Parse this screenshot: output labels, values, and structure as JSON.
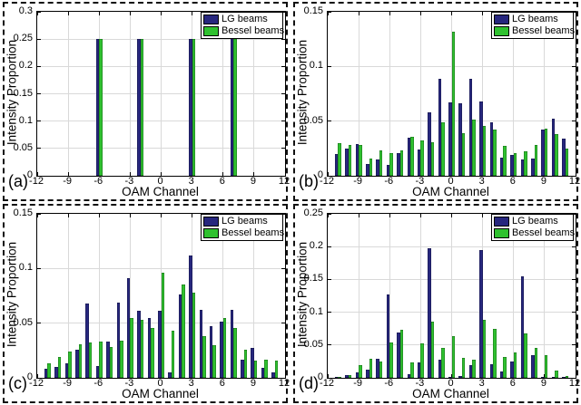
{
  "colors": {
    "lg": "#27277E",
    "bessel": "#2FC12F",
    "grid": "#D9D9D9",
    "axis": "#000000",
    "panel_border": "#111111",
    "legend_bg": "#FFFFFF"
  },
  "legend": {
    "items": [
      {
        "label": "LG beams",
        "color_key": "lg"
      },
      {
        "label": "Bessel beams",
        "color_key": "bessel"
      }
    ]
  },
  "chart_data": [
    {
      "panel": "(a)",
      "type": "bar",
      "xlabel": "OAM Channel",
      "ylabel": "Intensity Proportion",
      "xlim": [
        -12,
        12
      ],
      "ylim": [
        0,
        0.3
      ],
      "xticks": [
        -12,
        -9,
        -6,
        -3,
        0,
        3,
        6,
        9,
        12
      ],
      "yticks": [
        0,
        0.05,
        0.1,
        0.15,
        0.2,
        0.25,
        0.3
      ],
      "grid": true,
      "legend_position": "top-right",
      "categories": [
        -6,
        -2,
        3,
        7
      ],
      "series": [
        {
          "name": "LG beams",
          "values": [
            0.25,
            0.25,
            0.25,
            0.25
          ]
        },
        {
          "name": "Bessel beams",
          "values": [
            0.25,
            0.25,
            0.25,
            0.25
          ]
        }
      ]
    },
    {
      "panel": "(b)",
      "type": "bar",
      "xlabel": "OAM Channel",
      "ylabel": "Intensity Proportion",
      "xlim": [
        -12,
        12
      ],
      "ylim": [
        0,
        0.15
      ],
      "xticks": [
        -12,
        -9,
        -6,
        -3,
        0,
        3,
        6,
        9,
        12
      ],
      "yticks": [
        0,
        0.05,
        0.1,
        0.15
      ],
      "grid": true,
      "legend_position": "top-right",
      "categories": [
        -11,
        -10,
        -9,
        -8,
        -7,
        -6,
        -5,
        -4,
        -3,
        -2,
        -1,
        0,
        1,
        2,
        3,
        4,
        5,
        6,
        7,
        8,
        9,
        10,
        11
      ],
      "series": [
        {
          "name": "LG beams",
          "values": [
            0.02,
            0.025,
            0.029,
            0.011,
            0.015,
            0.01,
            0.021,
            0.035,
            0.024,
            0.058,
            0.089,
            0.067,
            0.066,
            0.089,
            0.068,
            0.049,
            0.017,
            0.019,
            0.015,
            0.016,
            0.042,
            0.052,
            0.034
          ]
        },
        {
          "name": "Bessel beams",
          "values": [
            0.03,
            0.028,
            0.028,
            0.016,
            0.023,
            0.021,
            0.023,
            0.036,
            0.032,
            0.031,
            0.049,
            0.132,
            0.039,
            0.051,
            0.046,
            0.042,
            0.027,
            0.021,
            0.022,
            0.028,
            0.043,
            0.038,
            0.025
          ]
        }
      ]
    },
    {
      "panel": "(c)",
      "type": "bar",
      "xlabel": "OAM Channel",
      "ylabel": "Intensity Proportion",
      "xlim": [
        -12,
        12
      ],
      "ylim": [
        0,
        0.15
      ],
      "xticks": [
        -12,
        -9,
        -6,
        -3,
        0,
        3,
        6,
        9,
        12
      ],
      "yticks": [
        0,
        0.05,
        0.1,
        0.15
      ],
      "grid": true,
      "legend_position": "top-right",
      "categories": [
        -11,
        -10,
        -9,
        -8,
        -7,
        -6,
        -5,
        -4,
        -3,
        -2,
        -1,
        0,
        1,
        2,
        3,
        4,
        5,
        6,
        7,
        8,
        9,
        10,
        11
      ],
      "series": [
        {
          "name": "LG beams",
          "values": [
            0.008,
            0.01,
            0.013,
            0.026,
            0.068,
            0.011,
            0.033,
            0.069,
            0.091,
            0.061,
            0.055,
            0.061,
            0.005,
            0.076,
            0.112,
            0.062,
            0.047,
            0.051,
            0.062,
            0.017,
            0.027,
            0.009,
            0.005
          ]
        },
        {
          "name": "Bessel beams",
          "values": [
            0.013,
            0.019,
            0.024,
            0.031,
            0.032,
            0.033,
            0.028,
            0.034,
            0.055,
            0.053,
            0.046,
            0.096,
            0.043,
            0.085,
            0.078,
            0.038,
            0.03,
            0.055,
            0.046,
            0.026,
            0.016,
            0.017,
            0.016
          ]
        }
      ]
    },
    {
      "panel": "(d)",
      "type": "bar",
      "xlabel": "OAM Channel",
      "ylabel": "Intensity Proportion",
      "xlim": [
        -12,
        12
      ],
      "ylim": [
        0,
        0.25
      ],
      "xticks": [
        -12,
        -9,
        -6,
        -3,
        0,
        3,
        6,
        9,
        12
      ],
      "yticks": [
        0,
        0.05,
        0.1,
        0.15,
        0.2,
        0.25
      ],
      "grid": true,
      "legend_position": "top-right",
      "categories": [
        -11,
        -10,
        -9,
        -8,
        -7,
        -6,
        -5,
        -4,
        -3,
        -2,
        -1,
        0,
        1,
        2,
        3,
        4,
        5,
        6,
        7,
        8,
        9,
        10,
        11
      ],
      "series": [
        {
          "name": "LG beams",
          "values": [
            0.001,
            0.004,
            0.008,
            0.013,
            0.029,
            0.127,
            0.069,
            0.006,
            0.023,
            0.198,
            0.027,
            0.002,
            0.003,
            0.019,
            0.195,
            0.021,
            0.009,
            0.025,
            0.155,
            0.034,
            0.002,
            0.001,
            0.001
          ]
        },
        {
          "name": "Bessel beams",
          "values": [
            0.002,
            0.004,
            0.019,
            0.029,
            0.025,
            0.054,
            0.073,
            0.024,
            0.052,
            0.085,
            0.045,
            0.064,
            0.03,
            0.028,
            0.088,
            0.074,
            0.032,
            0.039,
            0.068,
            0.045,
            0.034,
            0.011,
            0.003
          ]
        }
      ]
    }
  ]
}
